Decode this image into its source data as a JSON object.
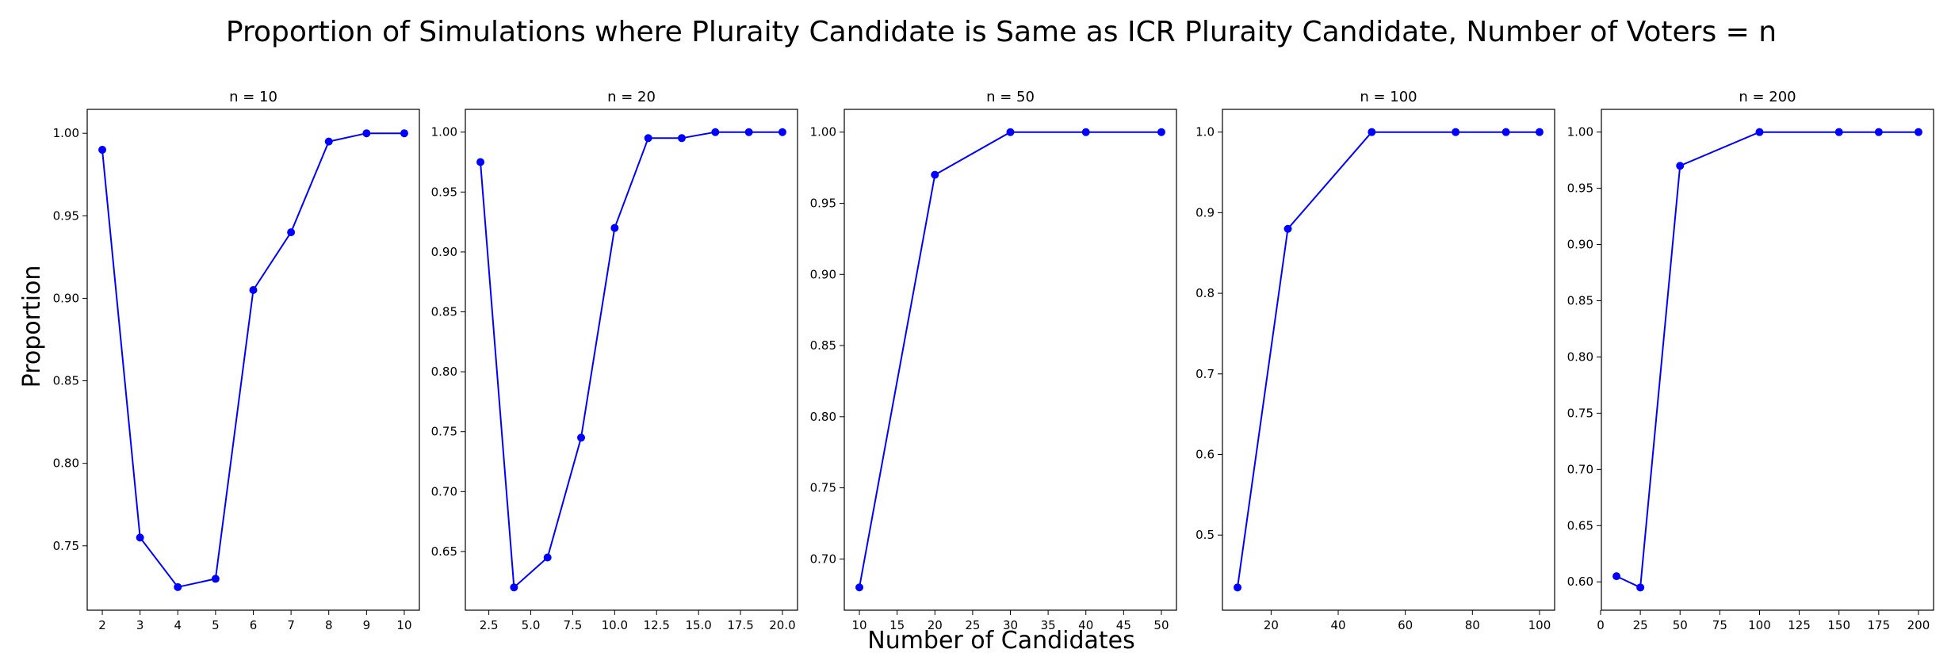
{
  "chart_data": {
    "type": "line",
    "title": "Proportion of Simulations where Pluraity Candidate is Same as ICR Pluraity Candidate, Number of Voters = n",
    "xlabel": "Number of Candidates",
    "ylabel": "Proportion",
    "grid": false,
    "line_color": "#0000ff",
    "marker": "circle",
    "panels": [
      {
        "title": "n = 10",
        "x": [
          2,
          3,
          4,
          5,
          6,
          7,
          8,
          9,
          10
        ],
        "y": [
          0.99,
          0.755,
          0.725,
          0.73,
          0.905,
          0.94,
          0.995,
          1.0,
          1.0
        ],
        "xlim": [
          1.6,
          10.4
        ],
        "ylim": [
          0.711,
          1.0145
        ],
        "xticks": [
          2,
          3,
          4,
          5,
          6,
          7,
          8,
          9,
          10
        ],
        "xtick_labels": [
          "2",
          "3",
          "4",
          "5",
          "6",
          "7",
          "8",
          "9",
          "10"
        ],
        "yticks": [
          0.75,
          0.8,
          0.85,
          0.9,
          0.95,
          1.0
        ],
        "ytick_labels": [
          "0.75",
          "0.80",
          "0.85",
          "0.90",
          "0.95",
          "1.00"
        ]
      },
      {
        "title": "n = 20",
        "x": [
          2,
          4,
          6,
          8,
          10,
          12,
          14,
          16,
          18,
          20
        ],
        "y": [
          0.975,
          0.62,
          0.645,
          0.745,
          0.92,
          0.995,
          0.995,
          1.0,
          1.0,
          1.0
        ],
        "xlim": [
          1.1,
          20.9
        ],
        "ylim": [
          0.601,
          1.019
        ],
        "xticks": [
          2.5,
          5.0,
          7.5,
          10.0,
          12.5,
          15.0,
          17.5,
          20.0
        ],
        "xtick_labels": [
          "2.5",
          "5.0",
          "7.5",
          "10.0",
          "12.5",
          "15.0",
          "17.5",
          "20.0"
        ],
        "yticks": [
          0.65,
          0.7,
          0.75,
          0.8,
          0.85,
          0.9,
          0.95,
          1.0
        ],
        "ytick_labels": [
          "0.65",
          "0.70",
          "0.75",
          "0.80",
          "0.85",
          "0.90",
          "0.95",
          "1.00"
        ]
      },
      {
        "title": "n = 50",
        "x": [
          10,
          20,
          30,
          40,
          50
        ],
        "y": [
          0.68,
          0.97,
          1.0,
          1.0,
          1.0
        ],
        "xlim": [
          8,
          52
        ],
        "ylim": [
          0.664,
          1.016
        ],
        "xticks": [
          10,
          15,
          20,
          25,
          30,
          35,
          40,
          45,
          50
        ],
        "xtick_labels": [
          "10",
          "15",
          "20",
          "25",
          "30",
          "35",
          "40",
          "45",
          "50"
        ],
        "yticks": [
          0.7,
          0.75,
          0.8,
          0.85,
          0.9,
          0.95,
          1.0
        ],
        "ytick_labels": [
          "0.70",
          "0.75",
          "0.80",
          "0.85",
          "0.90",
          "0.95",
          "1.00"
        ]
      },
      {
        "title": "n = 100",
        "x": [
          10,
          25,
          50,
          75,
          90,
          100
        ],
        "y": [
          0.435,
          0.88,
          1.0,
          1.0,
          1.0,
          1.0
        ],
        "xlim": [
          5.5,
          104.5
        ],
        "ylim": [
          0.4068,
          1.0282
        ],
        "xticks": [
          20,
          40,
          60,
          80,
          100
        ],
        "xtick_labels": [
          "20",
          "40",
          "60",
          "80",
          "100"
        ],
        "yticks": [
          0.5,
          0.6,
          0.7,
          0.8,
          0.9,
          1.0
        ],
        "ytick_labels": [
          "0.5",
          "0.6",
          "0.7",
          "0.8",
          "0.9",
          "1.0"
        ]
      },
      {
        "title": "n = 200",
        "x": [
          10,
          25,
          50,
          100,
          150,
          175,
          200
        ],
        "y": [
          0.605,
          0.595,
          0.97,
          1.0,
          1.0,
          1.0,
          1.0
        ],
        "xlim": [
          0.5,
          209.5
        ],
        "ylim": [
          0.5748,
          1.0202
        ],
        "xticks": [
          0,
          25,
          50,
          75,
          100,
          125,
          150,
          175,
          200
        ],
        "xtick_labels": [
          "0",
          "25",
          "50",
          "75",
          "100",
          "125",
          "150",
          "175",
          "200"
        ],
        "yticks": [
          0.6,
          0.65,
          0.7,
          0.75,
          0.8,
          0.85,
          0.9,
          0.95,
          1.0
        ],
        "ytick_labels": [
          "0.60",
          "0.65",
          "0.70",
          "0.75",
          "0.80",
          "0.85",
          "0.90",
          "0.95",
          "1.00"
        ]
      }
    ]
  }
}
